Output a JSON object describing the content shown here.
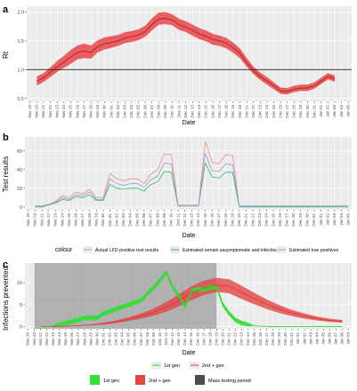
{
  "chart_data": [
    {
      "type": "line",
      "panel_letter": "a",
      "xlabel": "Date",
      "ylabel": "Rt",
      "ylim": [
        0.45,
        2.1
      ],
      "y_ticks": [
        "0.5",
        "1.0",
        "1.5",
        "2.0"
      ],
      "y_tick_values": [
        0.5,
        1.0,
        1.5,
        2.0
      ],
      "x_tick_labels": [
        "Nov 19",
        "Nov 20",
        "Nov 21",
        "Nov 22",
        "Nov 23",
        "Nov 24",
        "Nov 25",
        "Nov 26",
        "Nov 27",
        "Nov 28",
        "Nov 29",
        "Nov 30",
        "Dec 01",
        "Dec 02",
        "Dec 03",
        "Dec 04",
        "Dec 05",
        "Dec 06",
        "Dec 07",
        "Dec 08",
        "Dec 09",
        "Dec 10",
        "Dec 11",
        "Dec 12",
        "Dec 13",
        "Dec 14",
        "Dec 15",
        "Dec 16",
        "Dec 17",
        "Dec 18",
        "Dec 19",
        "Dec 20",
        "Dec 21",
        "Dec 22",
        "Dec 23",
        "Dec 24",
        "Dec 25",
        "Dec 26",
        "Dec 27",
        "Dec 28",
        "Dec 29",
        "Dec 30",
        "Dec 31",
        "Jan 01",
        "Jan 02",
        "Jan 03",
        "Jan 04",
        "Jan 05"
      ],
      "reference_line": 1.0,
      "grid": true,
      "series": [
        {
          "x_index": [
            1,
            2,
            3,
            4,
            5,
            6,
            7,
            8,
            9,
            10,
            11,
            12,
            13,
            14,
            15,
            16,
            17,
            18,
            19,
            20,
            21,
            22,
            23,
            24,
            25,
            26,
            27,
            28,
            29,
            30,
            31,
            32,
            33,
            34,
            35,
            36,
            37,
            38,
            39,
            40,
            41,
            42,
            43,
            44,
            45
          ],
          "mean": [
            0.8,
            0.86,
            0.95,
            1.05,
            1.13,
            1.22,
            1.3,
            1.32,
            1.3,
            1.4,
            1.45,
            1.47,
            1.5,
            1.55,
            1.57,
            1.6,
            1.66,
            1.78,
            1.88,
            1.89,
            1.86,
            1.78,
            1.74,
            1.68,
            1.62,
            1.58,
            1.52,
            1.5,
            1.46,
            1.38,
            1.28,
            1.12,
            0.98,
            0.88,
            0.8,
            0.72,
            0.63,
            0.62,
            0.66,
            0.68,
            0.68,
            0.72,
            0.8,
            0.88,
            0.84
          ],
          "lower": [
            0.72,
            0.79,
            0.87,
            0.96,
            1.03,
            1.1,
            1.18,
            1.2,
            1.19,
            1.3,
            1.35,
            1.38,
            1.41,
            1.46,
            1.48,
            1.51,
            1.57,
            1.68,
            1.78,
            1.79,
            1.77,
            1.69,
            1.65,
            1.59,
            1.53,
            1.49,
            1.43,
            1.41,
            1.37,
            1.29,
            1.2,
            1.05,
            0.92,
            0.82,
            0.74,
            0.66,
            0.58,
            0.57,
            0.61,
            0.63,
            0.63,
            0.67,
            0.75,
            0.83,
            0.79
          ],
          "upper": [
            0.88,
            0.94,
            1.04,
            1.15,
            1.24,
            1.34,
            1.42,
            1.45,
            1.42,
            1.51,
            1.56,
            1.58,
            1.6,
            1.65,
            1.67,
            1.7,
            1.76,
            1.89,
            1.99,
            2.0,
            1.96,
            1.88,
            1.84,
            1.78,
            1.72,
            1.68,
            1.62,
            1.59,
            1.55,
            1.47,
            1.37,
            1.2,
            1.05,
            0.95,
            0.87,
            0.78,
            0.69,
            0.68,
            0.72,
            0.74,
            0.74,
            0.78,
            0.86,
            0.94,
            0.9
          ]
        }
      ],
      "colors": {
        "line": "#b11d1d",
        "band": "#e8474a"
      }
    },
    {
      "type": "line",
      "panel_letter": "b",
      "xlabel": "Date",
      "ylabel": "Test results",
      "ylim": [
        -3,
        75
      ],
      "y_ticks": [
        "0",
        "20",
        "40",
        "60"
      ],
      "y_tick_values": [
        0,
        20,
        40,
        60
      ],
      "x_tick_labels": [
        "Nov 19",
        "Nov 20",
        "Nov 21",
        "Nov 22",
        "Nov 23",
        "Nov 24",
        "Nov 25",
        "Nov 26",
        "Nov 27",
        "Nov 28",
        "Nov 29",
        "Nov 30",
        "Dec 01",
        "Dec 02",
        "Dec 03",
        "Dec 04",
        "Dec 05",
        "Dec 06",
        "Dec 07",
        "Dec 08",
        "Dec 09",
        "Dec 10",
        "Dec 11",
        "Dec 12",
        "Dec 13",
        "Dec 14",
        "Dec 15",
        "Dec 16",
        "Dec 17",
        "Dec 18",
        "Dec 19",
        "Dec 20",
        "Dec 21",
        "Dec 22",
        "Dec 23",
        "Dec 24",
        "Dec 25",
        "Dec 26",
        "Dec 27",
        "Dec 28",
        "Dec 29",
        "Dec 30",
        "Dec 31",
        "Jan 01",
        "Jan 02",
        "Jan 03",
        "Jan 04",
        "Jan 05"
      ],
      "legend_title": "colour",
      "legend_position": "bottom",
      "grid": true,
      "series": [
        {
          "name": "Actual LFD positive test results",
          "color": "#f08a8a",
          "x_index": [
            1,
            2,
            3,
            4,
            5,
            6,
            7,
            8,
            9,
            10,
            11,
            12,
            13,
            14,
            15,
            16,
            17,
            18,
            19,
            20,
            21,
            22,
            23,
            24,
            25,
            26,
            27,
            28,
            29,
            30,
            31,
            32,
            33,
            34,
            35,
            36,
            37,
            38,
            39,
            40,
            41,
            42,
            43,
            44,
            45,
            46,
            47
          ],
          "values": [
            1,
            1,
            3,
            6,
            12,
            10,
            16,
            14,
            19,
            10,
            10,
            36,
            30,
            28,
            30,
            30,
            25,
            35,
            40,
            57,
            56,
            2,
            2,
            2,
            2,
            70,
            48,
            46,
            56,
            55,
            1,
            1,
            1,
            1,
            1,
            1,
            1,
            1,
            1,
            1,
            1,
            1,
            1,
            1,
            1,
            1,
            1
          ]
        },
        {
          "name": "Estimated remain assymptomatic and infectious",
          "color": "#35b46a",
          "x_index": [
            1,
            2,
            3,
            4,
            5,
            6,
            7,
            8,
            9,
            10,
            11,
            12,
            13,
            14,
            15,
            16,
            17,
            18,
            19,
            20,
            21,
            22,
            23,
            24,
            25,
            26,
            27,
            28,
            29,
            30,
            31,
            32,
            33,
            34,
            35,
            36,
            37,
            38,
            39,
            40,
            41,
            42,
            43,
            44,
            45,
            46,
            47
          ],
          "values": [
            0,
            0,
            2,
            4,
            8,
            7,
            11,
            10,
            13,
            7,
            7,
            24,
            20,
            19,
            20,
            20,
            17,
            24,
            27,
            38,
            37,
            1,
            1,
            1,
            1,
            47,
            32,
            31,
            37,
            37,
            0,
            0,
            0,
            0,
            0,
            0,
            0,
            0,
            0,
            0,
            0,
            0,
            0,
            0,
            0,
            0,
            0
          ]
        },
        {
          "name": "Estimated true positives",
          "color": "#8c9fd8",
          "x_index": [
            1,
            2,
            3,
            4,
            5,
            6,
            7,
            8,
            9,
            10,
            11,
            12,
            13,
            14,
            15,
            16,
            17,
            18,
            19,
            20,
            21,
            22,
            23,
            24,
            25,
            26,
            27,
            28,
            29,
            30,
            31,
            32,
            33,
            34,
            35,
            36,
            37,
            38,
            39,
            40,
            41,
            42,
            43,
            44,
            45,
            46,
            47
          ],
          "values": [
            1,
            1,
            2,
            5,
            10,
            8,
            13,
            12,
            16,
            8,
            8,
            30,
            25,
            23,
            25,
            25,
            21,
            29,
            33,
            47,
            46,
            1,
            1,
            1,
            1,
            57,
            39,
            38,
            46,
            45,
            1,
            1,
            1,
            1,
            1,
            1,
            1,
            1,
            1,
            1,
            1,
            1,
            1,
            1,
            1,
            1,
            1
          ]
        }
      ]
    },
    {
      "type": "area",
      "panel_letter": "c",
      "xlabel": "Date",
      "ylabel": "Infections prevented",
      "ylim": [
        -0.5,
        14.5
      ],
      "y_ticks": [
        "0",
        "5",
        "10"
      ],
      "y_tick_values": [
        0,
        5,
        10
      ],
      "x_tick_labels": [
        "Nov 19",
        "Nov 20",
        "Nov 21",
        "Nov 22",
        "Nov 23",
        "Nov 24",
        "Nov 25",
        "Nov 26",
        "Nov 27",
        "Nov 28",
        "Nov 29",
        "Nov 30",
        "Dec 01",
        "Dec 02",
        "Dec 03",
        "Dec 04",
        "Dec 05",
        "Dec 06",
        "Dec 07",
        "Dec 08",
        "Dec 09",
        "Dec 10",
        "Dec 11",
        "Dec 12",
        "Dec 13",
        "Dec 14",
        "Dec 15",
        "Dec 16",
        "Dec 17",
        "Dec 18",
        "Dec 19",
        "Dec 20",
        "Dec 21",
        "Dec 22",
        "Dec 23",
        "Dec 24",
        "Dec 25",
        "Dec 26",
        "Dec 27",
        "Dec 28",
        "Dec 29",
        "Dec 30",
        "Dec 31",
        "Jan 01",
        "Jan 02",
        "Jan 03",
        "Jan 04",
        "Jan 05",
        "Jan 06",
        "Jan 07",
        "Jan 08",
        "Jan 09"
      ],
      "mass_testing_period": [
        1,
        30
      ],
      "grid": true,
      "legend_position": "bottom",
      "line_legend": [
        "1st gen",
        "2nd + gen"
      ],
      "fill_legend": [
        "1st gen",
        "2nd + gen",
        "Mass testing period"
      ],
      "series": [
        {
          "name": "1st gen",
          "color": "#2fd62f",
          "x_index": [
            2,
            3,
            4,
            5,
            6,
            7,
            8,
            9,
            10,
            11,
            12,
            13,
            14,
            15,
            16,
            17,
            18,
            19,
            20,
            21,
            22,
            23,
            24,
            25,
            26,
            27,
            28,
            29,
            30,
            31,
            32,
            33,
            34,
            35,
            36,
            37,
            38,
            39,
            40,
            41,
            42,
            43,
            44,
            45,
            46,
            47,
            48,
            49,
            50
          ],
          "mean": [
            0,
            0,
            0.2,
            0.5,
            0.8,
            1.2,
            1.5,
            2,
            2,
            2,
            3,
            3.5,
            4,
            4.5,
            5,
            5.5,
            6,
            7.5,
            9,
            10.5,
            12.5,
            9,
            7,
            4.5,
            8,
            8.5,
            8.5,
            9,
            9,
            5,
            3,
            1.5,
            0.8,
            0.4,
            0.2,
            0.1,
            0.05,
            0,
            0,
            0,
            0,
            0,
            0,
            0,
            0,
            0,
            0,
            0,
            0
          ],
          "band": 0.55
        },
        {
          "name": "2nd + gen",
          "color": "#d93a3a",
          "x_index": [
            2,
            4,
            6,
            8,
            10,
            12,
            14,
            16,
            18,
            20,
            22,
            24,
            26,
            28,
            30,
            32,
            34,
            36,
            38,
            40,
            42,
            44,
            46,
            48,
            50
          ],
          "mean": [
            0,
            0.05,
            0.1,
            0.2,
            0.4,
            0.7,
            1.1,
            1.7,
            2.4,
            3.3,
            4.5,
            6,
            7.6,
            8.8,
            9.5,
            9.2,
            7.8,
            6.4,
            5.1,
            4,
            3.1,
            2.4,
            1.8,
            1.4,
            1.2
          ],
          "lower": [
            0,
            0.03,
            0.07,
            0.15,
            0.3,
            0.5,
            0.8,
            1.3,
            1.8,
            2.5,
            3.4,
            4.6,
            6,
            7.2,
            7.9,
            7.6,
            6.3,
            5.1,
            4,
            3.1,
            2.4,
            1.8,
            1.4,
            1.1,
            0.9
          ],
          "upper": [
            0,
            0.07,
            0.13,
            0.25,
            0.5,
            0.9,
            1.4,
            2.1,
            3,
            4.1,
            5.6,
            7.4,
            9.2,
            10.5,
            11.1,
            10.8,
            9.3,
            7.7,
            6.2,
            4.9,
            3.8,
            3,
            2.3,
            1.8,
            1.5
          ]
        }
      ]
    }
  ],
  "legend_b": {
    "title": "colour",
    "items": [
      "Actual LFD positive test results",
      "Estimated remain assymptomatic and infectious",
      "Estimated true positives"
    ]
  },
  "legend_c_lines": {
    "items": [
      "1st gen",
      "2nd + gen"
    ]
  },
  "legend_c_fills": {
    "items": [
      "1st gen",
      "2nd + gen",
      "Mass testing period"
    ]
  },
  "colors": {
    "panel_bg": "#ebebeb",
    "grid_major": "#ffffff",
    "mass_testing": "#808080"
  }
}
